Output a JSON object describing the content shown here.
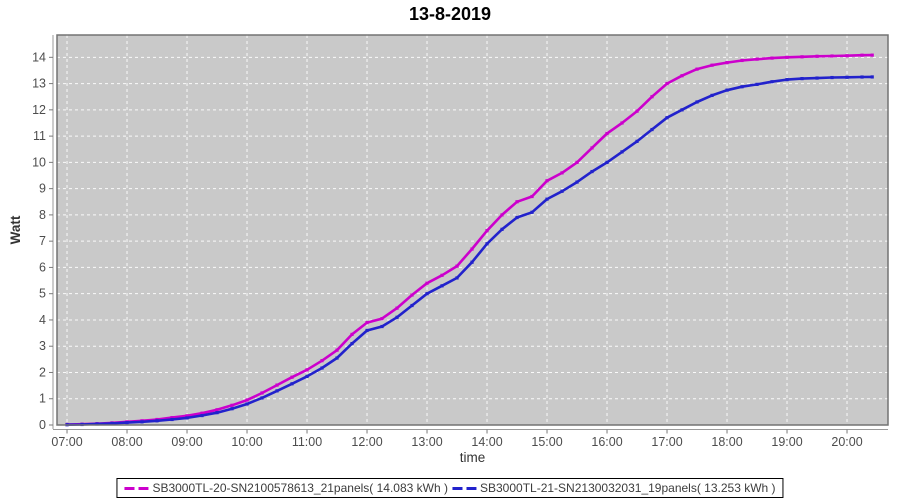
{
  "title": "13-8-2019",
  "chart_data": {
    "type": "line",
    "title": "13-8-2019",
    "xlabel": "time",
    "ylabel": "Watt",
    "plot_bg": "#c9c9c9",
    "plot_border_color": "#737373",
    "grid": true,
    "gridline_color": "#ffffff",
    "tick_label_color": "#4d4d4d",
    "axis_label_color": "#333333",
    "legend_position": "bottom-center",
    "x_range_hours": [
      6.833,
      20.683
    ],
    "ylim": [
      0,
      14.85
    ],
    "x_tick_hours": [
      7,
      8,
      9,
      10,
      11,
      12,
      13,
      14,
      15,
      16,
      17,
      18,
      19,
      20
    ],
    "x_tick_labels": [
      "07:00",
      "08:00",
      "09:00",
      "10:00",
      "11:00",
      "12:00",
      "13:00",
      "14:00",
      "15:00",
      "16:00",
      "17:00",
      "18:00",
      "19:00",
      "20:00"
    ],
    "y_ticks": [
      0,
      1,
      2,
      3,
      4,
      5,
      6,
      7,
      8,
      9,
      10,
      11,
      12,
      13,
      14
    ],
    "x_hours": [
      7,
      7.25,
      7.5,
      7.75,
      8,
      8.25,
      8.5,
      8.75,
      9,
      9.25,
      9.5,
      9.75,
      10,
      10.25,
      10.5,
      10.75,
      11,
      11.25,
      11.5,
      11.75,
      12,
      12.25,
      12.5,
      12.75,
      13,
      13.25,
      13.5,
      13.75,
      14,
      14.25,
      14.5,
      14.75,
      15,
      15.25,
      15.5,
      15.75,
      16,
      16.25,
      16.5,
      16.75,
      17,
      17.25,
      17.5,
      17.75,
      18,
      18.25,
      18.5,
      18.75,
      19,
      19.25,
      19.5,
      19.75,
      20,
      20.25,
      20.42
    ],
    "series": [
      {
        "name": "SB3000TL-20-SN2100578613_21panels( 14.083 kWh )",
        "total_kwh": 14.083,
        "color": "#cc00cc",
        "values": [
          0.02,
          0.03,
          0.05,
          0.08,
          0.12,
          0.16,
          0.21,
          0.28,
          0.35,
          0.45,
          0.58,
          0.75,
          0.95,
          1.22,
          1.52,
          1.82,
          2.1,
          2.45,
          2.85,
          3.45,
          3.9,
          4.05,
          4.45,
          4.95,
          5.4,
          5.7,
          6.05,
          6.7,
          7.4,
          8.0,
          8.5,
          8.7,
          9.3,
          9.6,
          10.0,
          10.55,
          11.1,
          11.5,
          11.95,
          12.5,
          13.0,
          13.3,
          13.55,
          13.7,
          13.8,
          13.88,
          13.93,
          13.97,
          14.0,
          14.02,
          14.04,
          14.05,
          14.06,
          14.08,
          14.083
        ]
      },
      {
        "name": "SB3000TL-21-SN2130032031_19panels( 13.253 kWh )",
        "total_kwh": 13.253,
        "color": "#2222cc",
        "values": [
          0.01,
          0.02,
          0.04,
          0.06,
          0.09,
          0.12,
          0.16,
          0.21,
          0.27,
          0.36,
          0.47,
          0.62,
          0.8,
          1.03,
          1.3,
          1.57,
          1.85,
          2.17,
          2.55,
          3.1,
          3.6,
          3.75,
          4.1,
          4.55,
          5.0,
          5.3,
          5.6,
          6.2,
          6.9,
          7.45,
          7.9,
          8.1,
          8.6,
          8.9,
          9.25,
          9.65,
          10.0,
          10.4,
          10.8,
          11.25,
          11.7,
          12.0,
          12.3,
          12.55,
          12.75,
          12.88,
          12.97,
          13.07,
          13.15,
          13.19,
          13.21,
          13.23,
          13.24,
          13.25,
          13.253
        ]
      }
    ]
  }
}
